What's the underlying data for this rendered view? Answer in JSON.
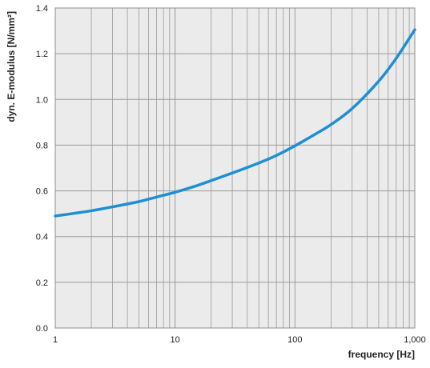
{
  "chart_data": {
    "type": "line",
    "xlabel": "frequency [Hz]",
    "ylabel": "dyn. E-modulus [N/mm²]",
    "x_scale": "log",
    "xlim": [
      1,
      1000
    ],
    "ylim": [
      0,
      1.4
    ],
    "x_ticks": [
      {
        "value": 1,
        "label": "1"
      },
      {
        "value": 10,
        "label": "10"
      },
      {
        "value": 100,
        "label": "100"
      },
      {
        "value": 1000,
        "label": "1,000"
      }
    ],
    "y_ticks": [
      {
        "value": 0,
        "label": "0.0"
      },
      {
        "value": 0.2,
        "label": "0.2"
      },
      {
        "value": 0.4,
        "label": "0.4"
      },
      {
        "value": 0.6,
        "label": "0.6"
      },
      {
        "value": 0.8,
        "label": "0.8"
      },
      {
        "value": 1.0,
        "label": "1.0"
      },
      {
        "value": 1.2,
        "label": "1.2"
      },
      {
        "value": 1.4,
        "label": "1.4"
      }
    ],
    "grid": true,
    "background_color": "#ebebeb",
    "grid_color": "#9a9a9a",
    "series": [
      {
        "color": "#1f8fd4",
        "points": [
          [
            1,
            0.49
          ],
          [
            1.5,
            0.503
          ],
          [
            2,
            0.513
          ],
          [
            3,
            0.53
          ],
          [
            5,
            0.553
          ],
          [
            7,
            0.573
          ],
          [
            10,
            0.594
          ],
          [
            15,
            0.622
          ],
          [
            20,
            0.645
          ],
          [
            30,
            0.678
          ],
          [
            50,
            0.722
          ],
          [
            70,
            0.755
          ],
          [
            100,
            0.797
          ],
          [
            150,
            0.85
          ],
          [
            200,
            0.89
          ],
          [
            300,
            0.96
          ],
          [
            500,
            1.08
          ],
          [
            700,
            1.18
          ],
          [
            1000,
            1.305
          ]
        ]
      }
    ]
  }
}
